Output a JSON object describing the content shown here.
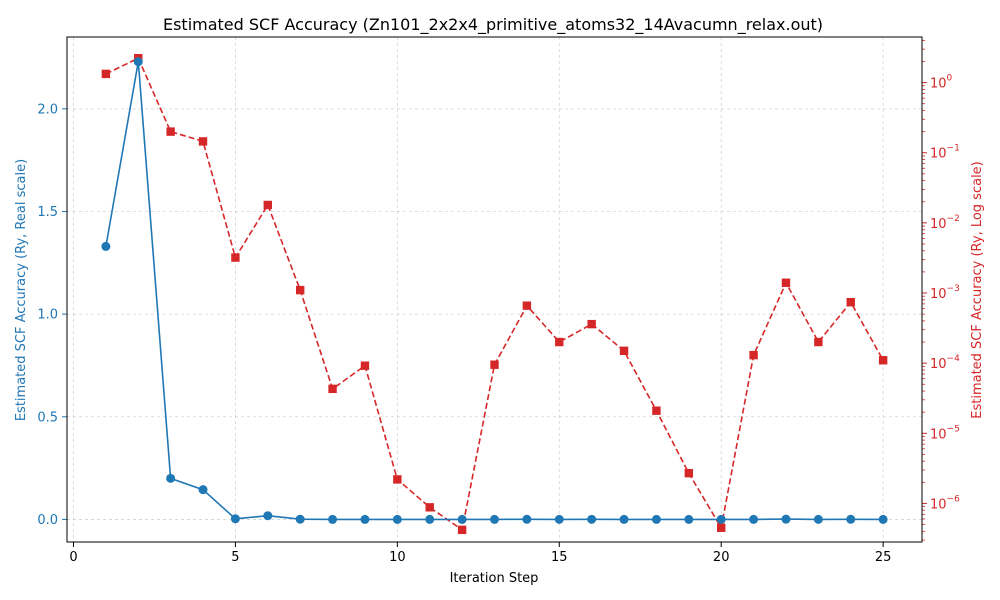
{
  "chart_data": {
    "type": "line",
    "title": "Estimated SCF Accuracy (Zn101_2x2x4_primitive_atoms32_14Avacumn_relax.out)",
    "xlabel": "Iteration Step",
    "ylabel_left": "Estimated SCF Accuracy (Ry, Real scale)",
    "ylabel_right": "Estimated SCF Accuracy (Ry, Log scale)",
    "xlim": [
      -0.2,
      26.2
    ],
    "ylim_left": [
      -0.11,
      2.35
    ],
    "ylim_right_log10": [
      -6.55,
      0.65
    ],
    "right_axis_scale": "log",
    "grid": true,
    "x_ticks": [
      0,
      5,
      10,
      15,
      20,
      25
    ],
    "x_tick_labels": [
      "0",
      "5",
      "10",
      "15",
      "20",
      "25"
    ],
    "y_left_ticks": [
      0.0,
      0.5,
      1.0,
      1.5,
      2.0
    ],
    "y_left_tick_labels": [
      "0.0",
      "0.5",
      "1.0",
      "1.5",
      "2.0"
    ],
    "y_right_tick_exponents": [
      -6,
      -5,
      -4,
      -3,
      -2,
      -1,
      0
    ],
    "y_right_tick_labels": [
      "−6",
      "−5",
      "−4",
      "−3",
      "−2",
      "−1",
      "0"
    ],
    "y_right_tick_base": "10",
    "x": [
      1,
      2,
      3,
      4,
      5,
      6,
      7,
      8,
      9,
      10,
      11,
      12,
      13,
      14,
      15,
      16,
      17,
      18,
      19,
      20,
      21,
      22,
      23,
      24,
      25
    ],
    "series": [
      {
        "axis": "left",
        "color": "#1f77b4",
        "linestyle": "solid",
        "marker": "circle",
        "values": [
          1.33,
          2.23,
          0.2,
          0.145,
          0.003,
          0.018,
          0.001,
          4e-05,
          0.0001,
          2e-06,
          1e-06,
          4e-07,
          0.0001,
          0.0007,
          0.0002,
          0.0004,
          0.00015,
          2e-05,
          3e-06,
          4e-07,
          0.00013,
          0.0014,
          0.0002,
          0.00075,
          0.00011
        ]
      },
      {
        "axis": "right",
        "color": "#d62728",
        "linestyle": "dashed",
        "marker": "square",
        "values": [
          1.33,
          2.23,
          0.2,
          0.145,
          0.0032,
          0.018,
          0.0011,
          4.3e-05,
          9.2e-05,
          2.2e-06,
          8.8e-07,
          4.2e-07,
          9.5e-05,
          0.00066,
          0.0002,
          0.00036,
          0.00015,
          2.1e-05,
          2.7e-06,
          4.5e-07,
          0.00013,
          0.0014,
          0.0002,
          0.00074,
          0.00011
        ]
      }
    ]
  }
}
